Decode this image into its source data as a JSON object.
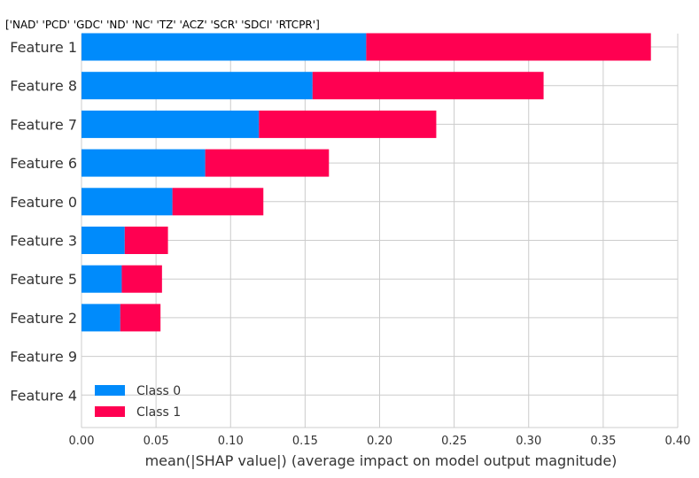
{
  "chart_data": {
    "type": "bar",
    "orientation": "horizontal",
    "stacked": true,
    "title": "['NAD' 'PCD' 'GDC' 'ND' 'NC' 'TZ' 'ACZ' 'SCR' 'SDCI' 'RTCPR']",
    "xlabel": "mean(|SHAP value|) (average impact on model output magnitude)",
    "ylabel": "",
    "xlim": [
      0,
      0.4
    ],
    "xticks": [
      "0.00",
      "0.05",
      "0.10",
      "0.15",
      "0.20",
      "0.25",
      "0.30",
      "0.35",
      "0.40"
    ],
    "grid": true,
    "legend_position": "lower-left",
    "categories": [
      "Feature 1",
      "Feature 8",
      "Feature 7",
      "Feature 6",
      "Feature 0",
      "Feature 3",
      "Feature 5",
      "Feature 2",
      "Feature 9",
      "Feature 4"
    ],
    "series": [
      {
        "name": "Class 0",
        "color": "#008bfb",
        "values": [
          0.191,
          0.155,
          0.119,
          0.083,
          0.061,
          0.029,
          0.027,
          0.026,
          0.0,
          0.0
        ]
      },
      {
        "name": "Class 1",
        "color": "#ff0051",
        "values": [
          0.191,
          0.155,
          0.119,
          0.083,
          0.061,
          0.029,
          0.027,
          0.027,
          0.0,
          0.0
        ]
      }
    ]
  }
}
